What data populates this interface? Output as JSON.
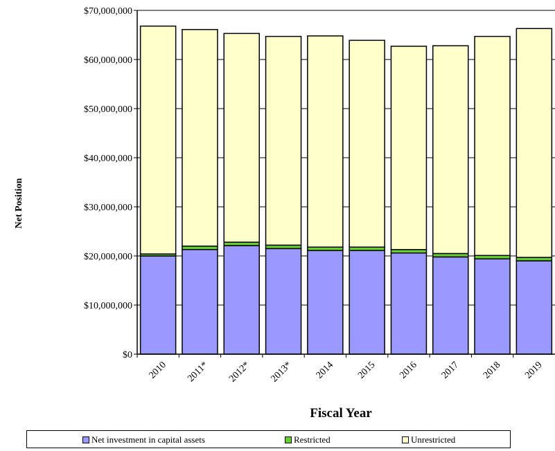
{
  "chart_data": {
    "type": "bar",
    "stacked": true,
    "xlabel": "Fiscal Year",
    "ylabel": "Net Position",
    "categories": [
      "2010",
      "2011*",
      "2012*",
      "2013*",
      "2014",
      "2015",
      "2016",
      "2017",
      "2018",
      "2019"
    ],
    "ylim": [
      0,
      70000000
    ],
    "yticks": [
      0,
      10000000,
      20000000,
      30000000,
      40000000,
      50000000,
      60000000,
      70000000
    ],
    "ytick_labels": [
      "$0",
      "$10,000,000",
      "$20,000,000",
      "$30,000,000",
      "$40,000,000",
      "$50,000,000",
      "$60,000,000",
      "$70,000,000"
    ],
    "grid": true,
    "legend_position": "bottom",
    "series": [
      {
        "name": "Net investment in capital assets",
        "color": "#9999FF",
        "values": [
          20000000,
          21300000,
          22100000,
          21500000,
          21100000,
          21100000,
          20600000,
          19800000,
          19400000,
          19000000
        ]
      },
      {
        "name": "Restricted",
        "color": "#66CC33",
        "values": [
          400000,
          700000,
          700000,
          700000,
          700000,
          700000,
          700000,
          700000,
          700000,
          700000
        ]
      },
      {
        "name": "Unrestricted",
        "color": "#FFFFCC",
        "values": [
          46400000,
          44100000,
          42500000,
          42500000,
          43000000,
          42100000,
          41400000,
          42300000,
          44600000,
          46600000
        ]
      }
    ]
  }
}
